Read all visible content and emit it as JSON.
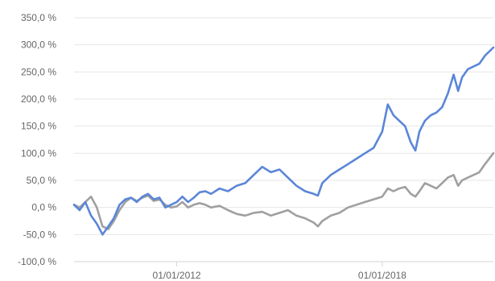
{
  "chart_data": {
    "type": "line",
    "title": "",
    "xlabel": "",
    "ylabel": "",
    "grid": true,
    "legend": "none",
    "ylim": [
      -100,
      350
    ],
    "xlim": [
      "2009-01-01",
      "2021-03-31"
    ],
    "y_ticks": [
      -100,
      -50,
      0,
      50,
      100,
      150,
      200,
      250,
      300,
      350
    ],
    "y_tick_labels": [
      "-100,0 %",
      "-50,0 %",
      "0,0 %",
      "50,0 %",
      "100,0 %",
      "150,0 %",
      "200,0 %",
      "250,0 %",
      "300,0 %",
      "350,0 %"
    ],
    "x_ticks": [
      "2012-01-01",
      "2018-01-01"
    ],
    "x_tick_labels": [
      "01/01/2012",
      "01/01/2018"
    ],
    "series": [
      {
        "color": "#5b86d8",
        "points": [
          [
            "2009-01-01",
            5
          ],
          [
            "2009-03-01",
            -5
          ],
          [
            "2009-05-01",
            10
          ],
          [
            "2009-07-01",
            -15
          ],
          [
            "2009-09-01",
            -30
          ],
          [
            "2009-11-01",
            -50
          ],
          [
            "2010-01-01",
            -35
          ],
          [
            "2010-03-01",
            -20
          ],
          [
            "2010-05-01",
            5
          ],
          [
            "2010-07-01",
            15
          ],
          [
            "2010-09-01",
            18
          ],
          [
            "2010-11-01",
            10
          ],
          [
            "2011-01-01",
            20
          ],
          [
            "2011-03-01",
            25
          ],
          [
            "2011-05-01",
            15
          ],
          [
            "2011-07-01",
            18
          ],
          [
            "2011-09-01",
            0
          ],
          [
            "2011-11-01",
            5
          ],
          [
            "2012-01-01",
            10
          ],
          [
            "2012-03-01",
            20
          ],
          [
            "2012-05-01",
            10
          ],
          [
            "2012-07-01",
            18
          ],
          [
            "2012-09-01",
            28
          ],
          [
            "2012-11-01",
            30
          ],
          [
            "2013-01-01",
            25
          ],
          [
            "2013-04-01",
            35
          ],
          [
            "2013-07-01",
            30
          ],
          [
            "2013-10-01",
            40
          ],
          [
            "2014-01-01",
            45
          ],
          [
            "2014-04-01",
            60
          ],
          [
            "2014-07-01",
            75
          ],
          [
            "2014-10-01",
            65
          ],
          [
            "2015-01-01",
            70
          ],
          [
            "2015-04-01",
            55
          ],
          [
            "2015-07-01",
            40
          ],
          [
            "2015-10-01",
            30
          ],
          [
            "2016-01-01",
            25
          ],
          [
            "2016-02-15",
            22
          ],
          [
            "2016-04-01",
            45
          ],
          [
            "2016-07-01",
            60
          ],
          [
            "2016-10-01",
            70
          ],
          [
            "2017-01-01",
            80
          ],
          [
            "2017-04-01",
            90
          ],
          [
            "2017-07-01",
            100
          ],
          [
            "2017-10-01",
            110
          ],
          [
            "2018-01-01",
            140
          ],
          [
            "2018-03-01",
            190
          ],
          [
            "2018-05-01",
            170
          ],
          [
            "2018-07-01",
            160
          ],
          [
            "2018-09-01",
            150
          ],
          [
            "2018-11-01",
            120
          ],
          [
            "2018-12-20",
            105
          ],
          [
            "2019-02-01",
            140
          ],
          [
            "2019-04-01",
            160
          ],
          [
            "2019-06-01",
            170
          ],
          [
            "2019-08-01",
            175
          ],
          [
            "2019-10-01",
            185
          ],
          [
            "2019-12-01",
            210
          ],
          [
            "2020-02-01",
            245
          ],
          [
            "2020-03-20",
            215
          ],
          [
            "2020-05-01",
            240
          ],
          [
            "2020-07-01",
            255
          ],
          [
            "2020-09-01",
            260
          ],
          [
            "2020-11-01",
            265
          ],
          [
            "2021-01-01",
            280
          ],
          [
            "2021-03-31",
            295
          ]
        ]
      },
      {
        "color": "#a0a0a0",
        "points": [
          [
            "2009-01-01",
            5
          ],
          [
            "2009-03-01",
            0
          ],
          [
            "2009-05-01",
            10
          ],
          [
            "2009-07-01",
            20
          ],
          [
            "2009-09-01",
            0
          ],
          [
            "2009-11-01",
            -35
          ],
          [
            "2010-01-01",
            -40
          ],
          [
            "2010-03-01",
            -25
          ],
          [
            "2010-05-01",
            -5
          ],
          [
            "2010-07-01",
            10
          ],
          [
            "2010-09-01",
            18
          ],
          [
            "2010-11-01",
            12
          ],
          [
            "2011-01-01",
            18
          ],
          [
            "2011-03-01",
            22
          ],
          [
            "2011-05-01",
            12
          ],
          [
            "2011-07-01",
            15
          ],
          [
            "2011-09-01",
            5
          ],
          [
            "2011-11-01",
            0
          ],
          [
            "2012-01-01",
            2
          ],
          [
            "2012-03-01",
            10
          ],
          [
            "2012-05-01",
            0
          ],
          [
            "2012-07-01",
            5
          ],
          [
            "2012-09-01",
            8
          ],
          [
            "2012-11-01",
            5
          ],
          [
            "2013-01-01",
            0
          ],
          [
            "2013-04-01",
            3
          ],
          [
            "2013-07-01",
            -5
          ],
          [
            "2013-10-01",
            -12
          ],
          [
            "2014-01-01",
            -15
          ],
          [
            "2014-04-01",
            -10
          ],
          [
            "2014-07-01",
            -8
          ],
          [
            "2014-10-01",
            -15
          ],
          [
            "2015-01-01",
            -10
          ],
          [
            "2015-04-01",
            -5
          ],
          [
            "2015-07-01",
            -15
          ],
          [
            "2015-10-01",
            -20
          ],
          [
            "2016-01-01",
            -28
          ],
          [
            "2016-02-15",
            -35
          ],
          [
            "2016-04-01",
            -25
          ],
          [
            "2016-07-01",
            -15
          ],
          [
            "2016-10-01",
            -10
          ],
          [
            "2017-01-01",
            0
          ],
          [
            "2017-04-01",
            5
          ],
          [
            "2017-07-01",
            10
          ],
          [
            "2017-10-01",
            15
          ],
          [
            "2018-01-01",
            20
          ],
          [
            "2018-03-01",
            35
          ],
          [
            "2018-05-01",
            30
          ],
          [
            "2018-07-01",
            35
          ],
          [
            "2018-09-01",
            38
          ],
          [
            "2018-11-01",
            25
          ],
          [
            "2018-12-20",
            20
          ],
          [
            "2019-02-01",
            30
          ],
          [
            "2019-04-01",
            45
          ],
          [
            "2019-06-01",
            40
          ],
          [
            "2019-08-01",
            35
          ],
          [
            "2019-10-01",
            45
          ],
          [
            "2019-12-01",
            55
          ],
          [
            "2020-02-01",
            60
          ],
          [
            "2020-03-20",
            40
          ],
          [
            "2020-05-01",
            50
          ],
          [
            "2020-07-01",
            55
          ],
          [
            "2020-09-01",
            60
          ],
          [
            "2020-11-01",
            65
          ],
          [
            "2021-01-01",
            80
          ],
          [
            "2021-03-31",
            100
          ]
        ]
      }
    ]
  }
}
